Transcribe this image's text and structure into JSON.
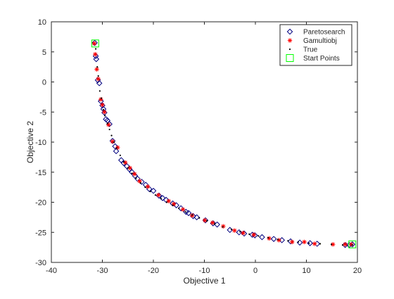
{
  "chart_data": {
    "type": "scatter",
    "xlabel": "Objective 1",
    "ylabel": "Objective 2",
    "xlim": [
      -40,
      20
    ],
    "ylim": [
      -30,
      10
    ],
    "xticks": [
      -40,
      -30,
      -20,
      -10,
      0,
      10,
      20
    ],
    "yticks": [
      -30,
      -25,
      -20,
      -15,
      -10,
      -5,
      0,
      5,
      10
    ],
    "grid": false,
    "legend_position": "top-right",
    "series": [
      {
        "name": "Paretosearch",
        "marker": "diamond",
        "color": "#00007f",
        "points": [
          [
            -31.5,
            6.5
          ],
          [
            -31.3,
            4.3
          ],
          [
            -31.2,
            3.8
          ],
          [
            -30.9,
            0.3
          ],
          [
            -30.6,
            -0.2
          ],
          [
            -30.3,
            -3.2
          ],
          [
            -30.0,
            -3.9
          ],
          [
            -29.8,
            -4.5
          ],
          [
            -29.6,
            -5.1
          ],
          [
            -29.3,
            -6.2
          ],
          [
            -29.0,
            -6.4
          ],
          [
            -28.6,
            -7.0
          ],
          [
            -28.0,
            -9.8
          ],
          [
            -27.5,
            -10.7
          ],
          [
            -27.3,
            -11.5
          ],
          [
            -26.3,
            -13.0
          ],
          [
            -25.8,
            -13.5
          ],
          [
            -25.2,
            -14.0
          ],
          [
            -24.7,
            -14.5
          ],
          [
            -24.2,
            -15.0
          ],
          [
            -23.6,
            -15.6
          ],
          [
            -23.1,
            -16.1
          ],
          [
            -22.3,
            -16.6
          ],
          [
            -21.5,
            -17.1
          ],
          [
            -20.8,
            -17.8
          ],
          [
            -20.0,
            -18.1
          ],
          [
            -18.9,
            -18.9
          ],
          [
            -18.2,
            -19.3
          ],
          [
            -17.5,
            -19.6
          ],
          [
            -16.2,
            -20.2
          ],
          [
            -15.5,
            -20.5
          ],
          [
            -14.6,
            -21.0
          ],
          [
            -13.6,
            -21.6
          ],
          [
            -13.1,
            -21.8
          ],
          [
            -12.2,
            -22.3
          ],
          [
            -11.5,
            -22.5
          ],
          [
            -9.8,
            -23.0
          ],
          [
            -8.3,
            -23.5
          ],
          [
            -7.5,
            -23.7
          ],
          [
            -5.0,
            -24.6
          ],
          [
            -3.2,
            -25.0
          ],
          [
            -2.2,
            -25.2
          ],
          [
            -0.6,
            -25.4
          ],
          [
            -0.1,
            -25.5
          ],
          [
            1.3,
            -25.8
          ],
          [
            3.6,
            -26.1
          ],
          [
            5.2,
            -26.3
          ],
          [
            6.9,
            -26.5
          ],
          [
            8.7,
            -26.7
          ],
          [
            10.7,
            -26.8
          ],
          [
            12.1,
            -26.9
          ],
          [
            17.6,
            -27.1
          ],
          [
            18.4,
            -27.1
          ],
          [
            19.0,
            -27.0
          ]
        ]
      },
      {
        "name": "Gamultiobj",
        "marker": "asterisk",
        "color": "#ff0000",
        "points": [
          [
            -31.6,
            6.4
          ],
          [
            -31.4,
            4.6
          ],
          [
            -31.1,
            2.1
          ],
          [
            -30.8,
            0.5
          ],
          [
            -30.3,
            -2.9
          ],
          [
            -30.0,
            -3.8
          ],
          [
            -29.6,
            -5.0
          ],
          [
            -28.8,
            -7.1
          ],
          [
            -28.0,
            -9.9
          ],
          [
            -27.0,
            -10.9
          ],
          [
            -25.5,
            -13.4
          ],
          [
            -24.6,
            -14.3
          ],
          [
            -23.7,
            -15.3
          ],
          [
            -22.7,
            -16.5
          ],
          [
            -21.1,
            -17.4
          ],
          [
            -19.0,
            -18.8
          ],
          [
            -17.0,
            -19.8
          ],
          [
            -16.0,
            -20.3
          ],
          [
            -14.2,
            -21.2
          ],
          [
            -12.4,
            -22.2
          ],
          [
            -9.9,
            -23.0
          ],
          [
            -8.4,
            -23.4
          ],
          [
            -6.3,
            -24.0
          ],
          [
            -4.1,
            -24.7
          ],
          [
            -2.4,
            -25.1
          ],
          [
            -0.3,
            -25.4
          ],
          [
            2.7,
            -26.0
          ],
          [
            4.6,
            -26.3
          ],
          [
            7.2,
            -26.6
          ],
          [
            9.6,
            -26.6
          ],
          [
            11.6,
            -26.9
          ],
          [
            15.2,
            -27.0
          ],
          [
            17.6,
            -27.0
          ],
          [
            18.8,
            -27.0
          ]
        ]
      },
      {
        "name": "True",
        "marker": "dot",
        "color": "#000000",
        "points": [
          [
            -31.3,
            5.5
          ],
          [
            -31.0,
            2.5
          ],
          [
            -30.8,
            1.0
          ],
          [
            -30.5,
            -1.5
          ],
          [
            -30.2,
            -2.7
          ],
          [
            -29.8,
            -4.6
          ],
          [
            -29.5,
            -5.6
          ],
          [
            -29.0,
            -6.9
          ],
          [
            -28.6,
            -7.9
          ],
          [
            -28.2,
            -8.9
          ],
          [
            -27.7,
            -10.0
          ],
          [
            -27.2,
            -11.0
          ],
          [
            -26.5,
            -12.2
          ],
          [
            -25.8,
            -13.3
          ],
          [
            -25.0,
            -14.3
          ],
          [
            -24.2,
            -15.2
          ],
          [
            -23.4,
            -16.0
          ],
          [
            -22.5,
            -16.8
          ],
          [
            -21.6,
            -17.5
          ],
          [
            -20.6,
            -18.2
          ],
          [
            -19.6,
            -18.8
          ],
          [
            -18.5,
            -19.4
          ],
          [
            -17.4,
            -20.0
          ],
          [
            -16.2,
            -20.5
          ],
          [
            -15.0,
            -21.0
          ],
          [
            -13.7,
            -21.6
          ],
          [
            -12.4,
            -22.1
          ],
          [
            -11.0,
            -22.6
          ],
          [
            -9.5,
            -23.1
          ],
          [
            -8.0,
            -23.6
          ],
          [
            -6.4,
            -24.1
          ],
          [
            -4.7,
            -24.5
          ],
          [
            -3.0,
            -24.9
          ],
          [
            -1.2,
            -25.3
          ],
          [
            0.6,
            -25.6
          ],
          [
            2.5,
            -25.9
          ],
          [
            4.4,
            -26.2
          ],
          [
            6.4,
            -26.4
          ],
          [
            8.4,
            -26.6
          ],
          [
            10.5,
            -26.8
          ],
          [
            12.7,
            -26.9
          ],
          [
            14.9,
            -27.0
          ],
          [
            17.1,
            -27.1
          ],
          [
            19.0,
            -27.1
          ]
        ]
      },
      {
        "name": "Start Points",
        "marker": "square",
        "color": "#00ff00",
        "points": [
          [
            -31.4,
            6.4
          ],
          [
            19.0,
            -27.0
          ]
        ]
      }
    ]
  }
}
